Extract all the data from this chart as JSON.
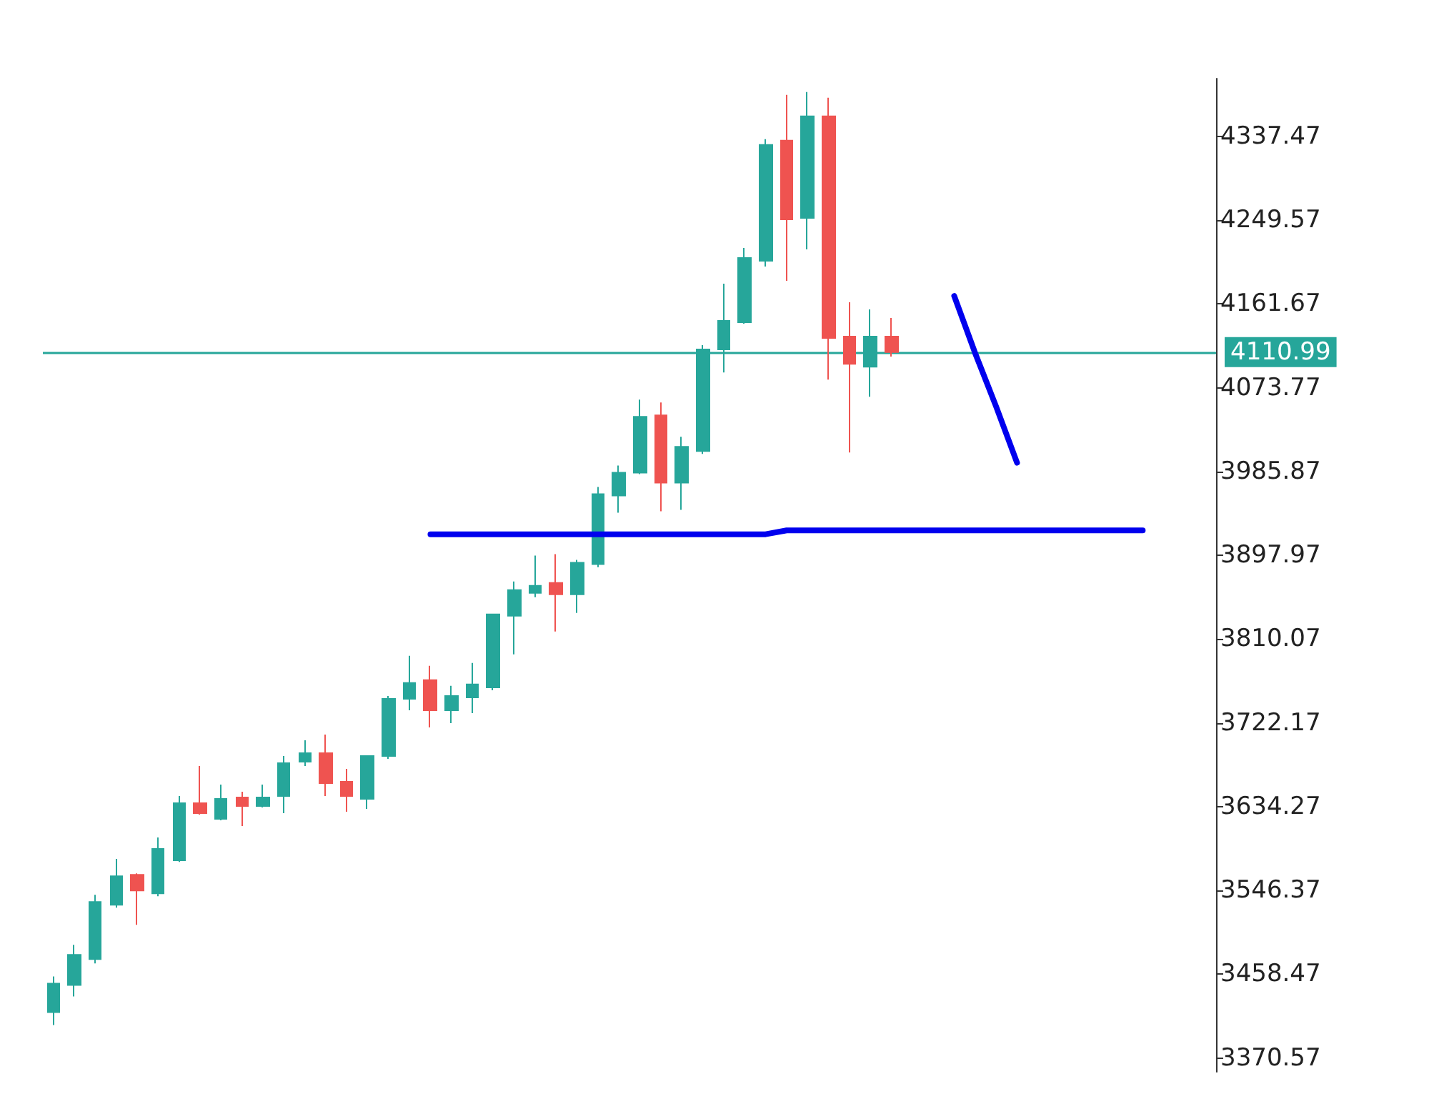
{
  "chart_data": {
    "type": "candlestick",
    "tick_labels": "y",
    "grid": false,
    "categories": [
      null,
      null,
      null,
      null,
      null,
      null,
      null,
      null,
      null,
      null,
      null,
      null,
      null,
      null,
      null,
      null,
      null,
      null,
      null,
      null,
      null,
      null,
      null,
      null,
      null,
      null,
      null,
      null,
      null,
      null,
      null,
      null,
      null,
      null,
      null,
      null,
      null,
      null,
      null,
      null,
      null,
      null,
      null,
      null,
      null,
      null,
      null,
      null,
      null,
      null,
      null,
      null,
      null,
      null,
      null,
      null
    ],
    "ylim": [
      3356,
      4398
    ],
    "yticks": [
      3370.57,
      3458.47,
      3546.37,
      3634.27,
      3722.17,
      3810.07,
      3897.97,
      3985.87,
      4073.77,
      4161.67,
      4249.57,
      4337.47
    ],
    "ohlc": [
      [
        3418.6,
        3456.1,
        3405.1,
        3448.6
      ],
      [
        3447.1,
        3489.2,
        3435.1,
        3478.7
      ],
      [
        3474.2,
        3541.7,
        3469.7,
        3534.2
      ],
      [
        3531.2,
        3579.3,
        3528.2,
        3561.2
      ],
      [
        3562.7,
        3564.2,
        3510.2,
        3546.2
      ],
      [
        3543.2,
        3601.8,
        3540.2,
        3589.8
      ],
      [
        3577.8,
        3645.3,
        3576.3,
        3637.8
      ],
      [
        3637.8,
        3676.9,
        3625.8,
        3627.3
      ],
      [
        3621.3,
        3657.3,
        3619.8,
        3642.3
      ],
      [
        3643.8,
        3649.8,
        3613.8,
        3634.8
      ],
      [
        3634.8,
        3657.3,
        3633.3,
        3643.8
      ],
      [
        3645.3,
        3687.4,
        3627.3,
        3679.9
      ],
      [
        3681.4,
        3703.9,
        3676.9,
        3690.4
      ],
      [
        3690.4,
        3709.9,
        3645.3,
        3658.8
      ],
      [
        3660.3,
        3673.9,
        3628.8,
        3645.3
      ],
      [
        3642.3,
        3687.4,
        3631.8,
        3687.4
      ],
      [
        3687.4,
        3750.4,
        3684.4,
        3747.4
      ],
      [
        3747.4,
        3792.5,
        3735.4,
        3763.9
      ],
      [
        3766.9,
        3782.0,
        3717.4,
        3735.4
      ],
      [
        3735.4,
        3760.9,
        3721.9,
        3750.4
      ],
      [
        3748.9,
        3785.0,
        3732.4,
        3762.4
      ],
      [
        3759.4,
        3836.0,
        3756.4,
        3836.0
      ],
      [
        3834.5,
        3870.5,
        3794.0,
        3861.5
      ],
      [
        3858.5,
        3897.6,
        3854.0,
        3866.0
      ],
      [
        3869.0,
        3899.1,
        3818.0,
        3857.0
      ],
      [
        3857.0,
        3893.1,
        3837.5,
        3890.1
      ],
      [
        3888.6,
        3969.6,
        3885.5,
        3962.1
      ],
      [
        3960.6,
        3992.1,
        3942.6,
        3984.6
      ],
      [
        3984.6,
        4061.2,
        3983.1,
        4043.2
      ],
      [
        4044.7,
        4058.2,
        3944.1,
        3974.1
      ],
      [
        3974.1,
        4022.2,
        3945.6,
        4011.7
      ],
      [
        4007.2,
        4118.3,
        4004.2,
        4113.8
      ],
      [
        4113.8,
        4182.8,
        4089.7,
        4143.8
      ],
      [
        4142.3,
        4220.4,
        4140.8,
        4209.9
      ],
      [
        4206.8,
        4334.5,
        4200.8,
        4328.5
      ],
      [
        4333.0,
        4381.0,
        4185.8,
        4250.4
      ],
      [
        4251.9,
        4384.0,
        4218.9,
        4358.5
      ],
      [
        4358.5,
        4378.0,
        4082.2,
        4125.8
      ],
      [
        4127.3,
        4163.3,
        4005.7,
        4098.7
      ],
      [
        4095.7,
        4155.8,
        4064.2,
        4127.3
      ],
      [
        4127.3,
        4146.8,
        4106.3,
        4111.0
      ],
      null,
      null,
      null,
      null,
      null,
      null,
      null,
      null,
      null,
      null,
      null,
      null,
      null,
      null,
      null
    ],
    "colors": [
      "#26a69a",
      "#26a69a",
      "#26a69a",
      "#26a69a",
      "#ef5350",
      "#26a69a",
      "#26a69a",
      "#ef5350",
      "#26a69a",
      "#ef5350",
      "#26a69a",
      "#26a69a",
      "#26a69a",
      "#ef5350",
      "#ef5350",
      "#26a69a",
      "#26a69a",
      "#26a69a",
      "#ef5350",
      "#26a69a",
      "#26a69a",
      "#26a69a",
      "#26a69a",
      "#26a69a",
      "#ef5350",
      "#26a69a",
      "#26a69a",
      "#26a69a",
      "#26a69a",
      "#ef5350",
      "#26a69a",
      "#26a69a",
      "#26a69a",
      "#26a69a",
      "#26a69a",
      "#ef5350",
      "#26a69a",
      "#ef5350",
      "#ef5350",
      "#26a69a",
      "#ef5350",
      null,
      null,
      null,
      null,
      null,
      null,
      null,
      null,
      null,
      null,
      null,
      null,
      null,
      null,
      null
    ],
    "ref_lines": [
      {
        "axis": "y",
        "value": 4110.99,
        "label": "4110.99",
        "color": "#26a69a"
      }
    ],
    "series": [
      {
        "type": "line",
        "color": "#0000ee",
        "values": [
          null,
          null,
          null,
          null,
          null,
          null,
          null,
          null,
          null,
          null,
          null,
          null,
          null,
          null,
          null,
          null,
          null,
          null,
          3920,
          3920,
          3920,
          3920,
          3920,
          3920,
          3920,
          3920,
          3920,
          3920,
          3920,
          3920,
          3920,
          3920,
          3920,
          3920,
          3920,
          3924,
          3924,
          3924,
          3924,
          3924,
          3924,
          3924,
          3924,
          3924,
          3924,
          3924,
          3924,
          3924,
          3924,
          3924,
          3924,
          3924,
          3924,
          null,
          null,
          null
        ]
      },
      {
        "type": "line",
        "color": "#0000ee",
        "values": [
          null,
          null,
          null,
          null,
          null,
          null,
          null,
          null,
          null,
          null,
          null,
          null,
          null,
          null,
          null,
          null,
          null,
          null,
          null,
          null,
          null,
          null,
          null,
          null,
          null,
          null,
          null,
          null,
          null,
          null,
          null,
          null,
          null,
          null,
          null,
          null,
          null,
          null,
          null,
          null,
          null,
          null,
          null,
          4170,
          4110,
          4054,
          3995,
          null,
          null,
          null,
          null,
          null,
          null,
          null,
          null,
          null
        ]
      }
    ]
  }
}
